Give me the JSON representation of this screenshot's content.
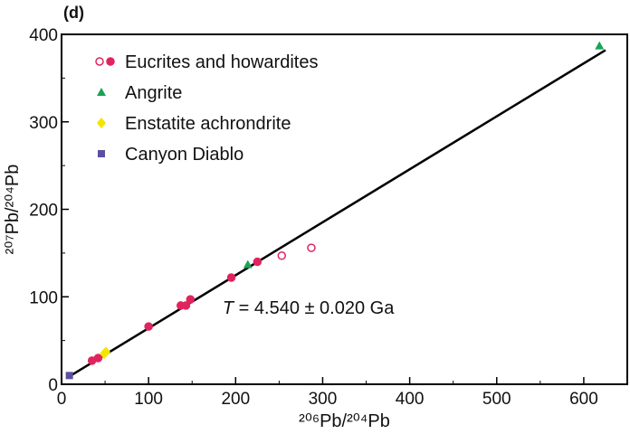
{
  "panel_label": "(d)",
  "chart_data": {
    "type": "scatter",
    "title": "",
    "xlabel": "²⁰⁶Pb/²⁰⁴Pb",
    "ylabel": "²⁰⁷Pb/²⁰⁴Pb",
    "xlim": [
      0,
      650
    ],
    "ylim": [
      0,
      400
    ],
    "x_ticks": [
      0,
      100,
      200,
      300,
      400,
      500,
      600
    ],
    "y_ticks": [
      0,
      100,
      200,
      300,
      400
    ],
    "grid": false,
    "legend_position": "top-left",
    "series": [
      {
        "name": "Eucrites and howardites",
        "marker": "circle",
        "color": "#e0245e",
        "points": [
          {
            "x": 35,
            "y": 27,
            "filled": true
          },
          {
            "x": 42,
            "y": 30,
            "filled": true
          },
          {
            "x": 100,
            "y": 66,
            "filled": true
          },
          {
            "x": 137,
            "y": 90,
            "filled": true
          },
          {
            "x": 143,
            "y": 90,
            "filled": true
          },
          {
            "x": 148,
            "y": 97,
            "filled": true
          },
          {
            "x": 195,
            "y": 122,
            "filled": true
          },
          {
            "x": 225,
            "y": 140,
            "filled": true
          },
          {
            "x": 253,
            "y": 147,
            "filled": false
          },
          {
            "x": 287,
            "y": 156,
            "filled": false
          }
        ]
      },
      {
        "name": "Angrite",
        "marker": "triangle",
        "color": "#1aa355",
        "points": [
          {
            "x": 214,
            "y": 137
          },
          {
            "x": 618,
            "y": 387
          }
        ]
      },
      {
        "name": "Enstatite achrondrite",
        "marker": "diamond",
        "color": "#f5e400",
        "points": [
          {
            "x": 49,
            "y": 35
          },
          {
            "x": 51,
            "y": 37
          }
        ]
      },
      {
        "name": "Canyon Diablo",
        "marker": "square",
        "color": "#5c4fa0",
        "points": [
          {
            "x": 9,
            "y": 10
          }
        ]
      }
    ],
    "fit_line": {
      "x": [
        9,
        625
      ],
      "y": [
        9,
        382
      ],
      "color": "#000000"
    },
    "annotation": {
      "italic": "T",
      "rest": " = 4.540 ± 0.020 Ga",
      "x": 185,
      "y": 88
    }
  }
}
